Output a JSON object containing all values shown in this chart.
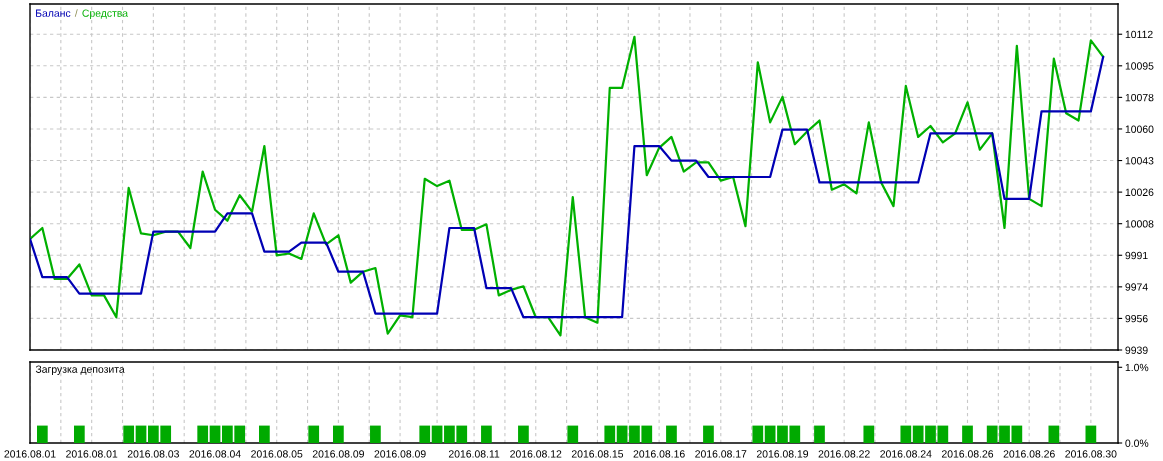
{
  "chart_data": [
    {
      "type": "line",
      "legend": "top left",
      "annotations": [
        "/"
      ],
      "line_style": "solid",
      "grid": true,
      "tick_labels": "y",
      "categories": [
        "2016.08.01",
        null,
        null,
        null,
        null,
        "2016.08.01",
        null,
        null,
        null,
        null,
        "2016.08.03",
        null,
        null,
        null,
        null,
        "2016.08.04",
        null,
        null,
        null,
        null,
        "2016.08.05",
        null,
        null,
        null,
        null,
        "2016.08.09",
        null,
        null,
        null,
        null,
        "2016.08.09",
        null,
        null,
        null,
        null,
        null,
        "2016.08.11",
        null,
        null,
        null,
        null,
        "2016.08.12",
        null,
        null,
        null,
        null,
        "2016.08.15",
        null,
        null,
        null,
        null,
        "2016.08.16",
        null,
        null,
        null,
        null,
        "2016.08.17",
        null,
        null,
        null,
        null,
        "2016.08.19",
        null,
        null,
        null,
        null,
        "2016.08.22",
        null,
        null,
        null,
        null,
        "2016.08.24",
        null,
        null,
        null,
        null,
        "2016.08.26",
        null,
        null,
        null,
        null,
        "2016.08.26",
        null,
        null,
        null,
        null,
        "2016.08.30",
        null
      ],
      "series": [
        {
          "name": "Баланс",
          "color": "#0000b4",
          "values": [
            10000,
            9979,
            9979,
            9979,
            9970,
            9970,
            9970,
            9970,
            9970,
            9970,
            10004,
            10004,
            10004,
            10004,
            10004,
            10004,
            10014,
            10014,
            10014,
            9993,
            9993,
            9993,
            9998,
            9998,
            9998,
            9982,
            9982,
            9982,
            9959,
            9959,
            9959,
            9959,
            9959,
            9959,
            10006,
            10006,
            10006,
            9973,
            9973,
            9973,
            9957,
            9957,
            9957,
            9957,
            9957,
            9957,
            9957,
            9957,
            9957,
            10051,
            10051,
            10051,
            10043,
            10043,
            10043,
            10034,
            10034,
            10034,
            10034,
            10034,
            10034,
            10060,
            10060,
            10060,
            10031,
            10031,
            10031,
            10031,
            10031,
            10031,
            10031,
            10031,
            10031,
            10058,
            10058,
            10058,
            10058,
            10058,
            10058,
            10022,
            10022,
            10022,
            10070,
            10070,
            10070,
            10070,
            10070,
            10100
          ]
        },
        {
          "name": "Средства",
          "color": "#00b000",
          "values": [
            10000,
            10006,
            9978,
            9978,
            9986,
            9969,
            9969,
            9957,
            10028,
            10003,
            10002,
            10004,
            10004,
            9995,
            10037,
            10016,
            10010,
            10024,
            10015,
            10051,
            9991,
            9992,
            9989,
            10014,
            9997,
            10002,
            9976,
            9982,
            9984,
            9948,
            9958,
            9957,
            10033,
            10029,
            10032,
            10005,
            10005,
            10008,
            9969,
            9972,
            9974,
            9957,
            9957,
            9947,
            10023,
            9957,
            9954,
            10083,
            10083,
            10111,
            10035,
            10050,
            10056,
            10037,
            10042,
            10042,
            10032,
            10034,
            10007,
            10097,
            10064,
            10078,
            10052,
            10059,
            10065,
            10027,
            10030,
            10025,
            10064,
            10031,
            10018,
            10084,
            10056,
            10062,
            10053,
            10058,
            10075,
            10049,
            10058,
            10006,
            10106,
            10022,
            10018,
            10099,
            10069,
            10065,
            10109,
            10100
          ]
        }
      ],
      "ylim": [
        9939,
        10129
      ],
      "yticks": [
        9939,
        {
          "value": 9956.34,
          "label": "9956"
        },
        {
          "value": 9973.68,
          "label": "9974"
        },
        {
          "value": 9991.02,
          "label": "9991"
        },
        {
          "value": 10008.36,
          "label": "10008"
        },
        {
          "value": 10025.7,
          "label": "10026"
        },
        {
          "value": 10043.04,
          "label": "10043"
        },
        {
          "value": 10060.38,
          "label": "10060"
        },
        {
          "value": 10077.72,
          "label": "10078"
        },
        {
          "value": 10095.06,
          "label": "10095"
        },
        {
          "value": 10112.4,
          "label": "10112"
        }
      ]
    },
    {
      "type": "bar",
      "title": "Загрузка депозита",
      "color": "#00aa00",
      "grid": "x",
      "categories": [
        "2016.08.01",
        null,
        null,
        null,
        null,
        "2016.08.01",
        null,
        null,
        null,
        null,
        "2016.08.03",
        null,
        null,
        null,
        null,
        "2016.08.04",
        null,
        null,
        null,
        null,
        "2016.08.05",
        null,
        null,
        null,
        null,
        "2016.08.09",
        null,
        null,
        null,
        null,
        "2016.08.09",
        null,
        null,
        null,
        null,
        null,
        "2016.08.11",
        null,
        null,
        null,
        null,
        "2016.08.12",
        null,
        null,
        null,
        null,
        "2016.08.15",
        null,
        null,
        null,
        null,
        "2016.08.16",
        null,
        null,
        null,
        null,
        "2016.08.17",
        null,
        null,
        null,
        null,
        "2016.08.19",
        null,
        null,
        null,
        null,
        "2016.08.22",
        null,
        null,
        null,
        null,
        "2016.08.24",
        null,
        null,
        null,
        null,
        "2016.08.26",
        null,
        null,
        null,
        null,
        "2016.08.26",
        null,
        null,
        null,
        null,
        "2016.08.30",
        null
      ],
      "values": [
        null,
        0.23,
        null,
        null,
        0.23,
        null,
        null,
        null,
        0.23,
        0.23,
        0.23,
        0.23,
        null,
        null,
        0.23,
        0.23,
        0.23,
        0.23,
        null,
        0.23,
        null,
        null,
        null,
        0.23,
        null,
        0.23,
        null,
        null,
        0.23,
        null,
        null,
        null,
        0.23,
        0.23,
        0.23,
        0.23,
        null,
        0.23,
        null,
        null,
        0.23,
        null,
        null,
        null,
        0.23,
        null,
        null,
        0.23,
        0.23,
        0.23,
        0.23,
        null,
        0.23,
        null,
        null,
        0.23,
        null,
        null,
        null,
        0.23,
        0.23,
        0.23,
        0.23,
        null,
        0.23,
        null,
        null,
        null,
        0.23,
        null,
        null,
        0.23,
        0.23,
        0.23,
        0.23,
        null,
        0.23,
        null,
        0.23,
        0.23,
        0.23,
        null,
        null,
        0.23,
        null,
        null,
        0.23,
        null
      ],
      "ylim": [
        0,
        1.07
      ],
      "yticks": [
        {
          "value": 0,
          "label": "0.0%"
        },
        {
          "value": 1,
          "label": "1.0%"
        }
      ]
    }
  ]
}
